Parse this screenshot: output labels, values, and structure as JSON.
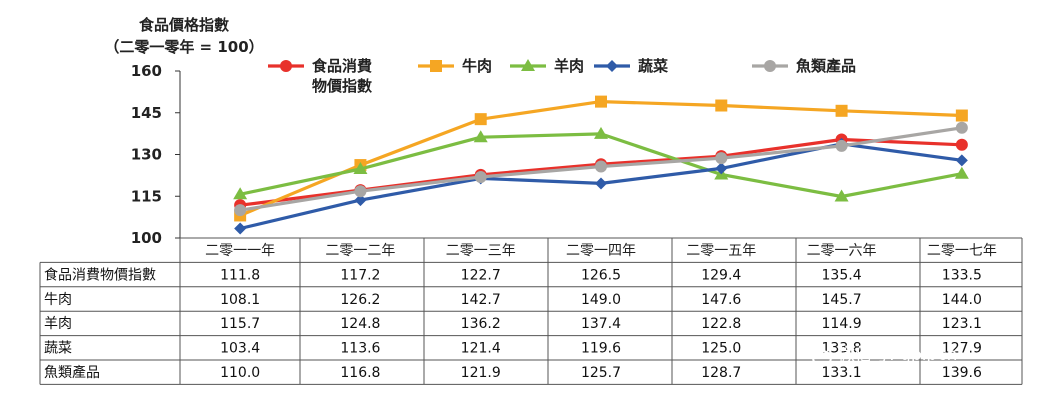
{
  "chart_data": {
    "type": "line",
    "ytitle_line1": "食品價格指數",
    "ytitle_line2": "（二零一零年 = 100）",
    "ylim": [
      100,
      160
    ],
    "yticks": [
      100,
      115,
      130,
      145,
      160
    ],
    "categories": [
      "二零一一年",
      "二零一二年",
      "二零一三年",
      "二零一四年",
      "二零一五年",
      "二零一六年",
      "二零一七年"
    ],
    "series": [
      {
        "name": "食品消費物價指數",
        "legend": [
          "食品消費",
          "物價指數"
        ],
        "color": "#e8312b",
        "marker": "circle",
        "values": [
          111.8,
          117.2,
          122.7,
          126.5,
          129.4,
          135.4,
          133.5
        ],
        "table_values": [
          "111.8",
          "117.2",
          "122.7",
          "126.5",
          "129.4",
          "135.4",
          "133.5"
        ]
      },
      {
        "name": "牛肉",
        "legend": [
          "牛肉"
        ],
        "color": "#f5a623",
        "marker": "square",
        "values": [
          108.1,
          126.2,
          142.7,
          149.0,
          147.6,
          145.7,
          144.0
        ],
        "table_values": [
          "108.1",
          "126.2",
          "142.7",
          "149.0",
          "147.6",
          "145.7",
          "144.0"
        ]
      },
      {
        "name": "羊肉",
        "legend": [
          "羊肉"
        ],
        "color": "#7cbd42",
        "marker": "triangle",
        "values": [
          115.7,
          124.8,
          136.2,
          137.4,
          122.8,
          114.9,
          123.1
        ],
        "table_values": [
          "115.7",
          "124.8",
          "136.2",
          "137.4",
          "122.8",
          "114.9",
          "123.1"
        ]
      },
      {
        "name": "蔬菜",
        "legend": [
          "蔬菜"
        ],
        "color": "#2f5ba8",
        "marker": "diamond",
        "values": [
          103.4,
          113.6,
          121.4,
          119.6,
          125.0,
          133.8,
          127.9
        ],
        "table_values": [
          "103.4",
          "113.6",
          "121.4",
          "119.6",
          "125.0",
          "133.8",
          "127.9"
        ]
      },
      {
        "name": "魚類產品",
        "legend": [
          "魚類產品"
        ],
        "color": "#a8a6a4",
        "marker": "circle",
        "values": [
          110.0,
          116.8,
          121.9,
          125.7,
          128.7,
          133.1,
          139.6
        ],
        "table_values": [
          "110.0",
          "116.8",
          "121.9",
          "125.7",
          "128.7",
          "133.1",
          "139.6"
        ]
      }
    ]
  },
  "watermark": {
    "text": "微信号: gplpcn"
  }
}
